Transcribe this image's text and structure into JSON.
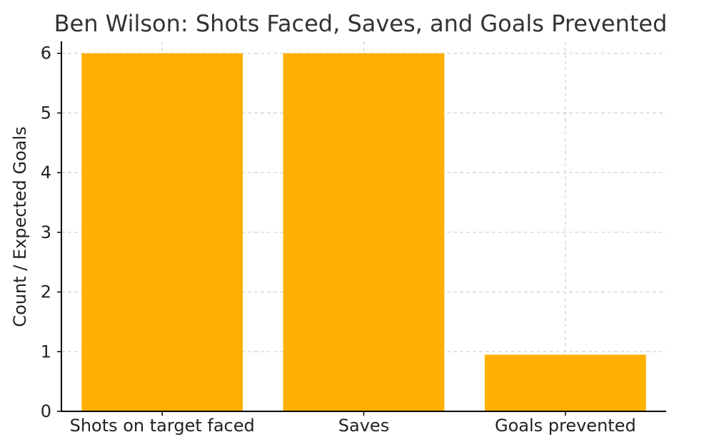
{
  "chart_data": {
    "type": "bar",
    "title": "Ben Wilson: Shots Faced, Saves, and Goals Prevented",
    "xlabel": "",
    "ylabel": "Count / Expected Goals",
    "categories": [
      "Shots on target faced",
      "Saves",
      "Goals prevented"
    ],
    "values": [
      6,
      6,
      0.95
    ],
    "ylim": [
      0,
      6.2
    ],
    "yticks": [
      "0",
      "1",
      "2",
      "3",
      "4",
      "5",
      "6"
    ],
    "grid": true,
    "bar_color": "#FFB000"
  }
}
